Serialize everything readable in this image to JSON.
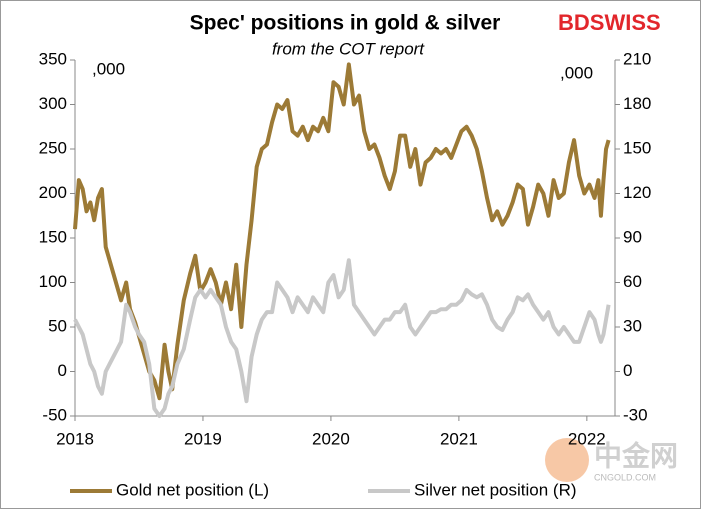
{
  "chart_data": {
    "type": "line",
    "title": "Spec' positions in gold & silver",
    "subtitle": "from the COT report",
    "left_unit": ",000",
    "right_unit": ",000",
    "logo": "BDSWISS",
    "watermark": "中金网",
    "watermark_sub": "CNGOLD.COM",
    "x": [
      2018.0,
      2018.03,
      2018.06,
      2018.09,
      2018.12,
      2018.15,
      2018.18,
      2018.21,
      2018.24,
      2018.27,
      2018.3,
      2018.33,
      2018.36,
      2018.4,
      2018.43,
      2018.47,
      2018.5,
      2018.54,
      2018.58,
      2018.62,
      2018.66,
      2018.7,
      2018.73,
      2018.76,
      2018.8,
      2018.85,
      2018.9,
      2018.94,
      2018.98,
      2019.02,
      2019.06,
      2019.1,
      2019.14,
      2019.18,
      2019.22,
      2019.26,
      2019.3,
      2019.34,
      2019.38,
      2019.42,
      2019.46,
      2019.5,
      2019.54,
      2019.58,
      2019.62,
      2019.66,
      2019.7,
      2019.74,
      2019.78,
      2019.82,
      2019.86,
      2019.9,
      2019.94,
      2019.98,
      2020.02,
      2020.06,
      2020.1,
      2020.14,
      2020.18,
      2020.22,
      2020.26,
      2020.3,
      2020.34,
      2020.38,
      2020.42,
      2020.46,
      2020.5,
      2020.54,
      2020.58,
      2020.62,
      2020.66,
      2020.7,
      2020.74,
      2020.78,
      2020.82,
      2020.86,
      2020.9,
      2020.94,
      2020.98,
      2021.02,
      2021.06,
      2021.1,
      2021.14,
      2021.18,
      2021.22,
      2021.26,
      2021.3,
      2021.34,
      2021.38,
      2021.42,
      2021.46,
      2021.5,
      2021.54,
      2021.58,
      2021.62,
      2021.66,
      2021.7,
      2021.74,
      2021.78,
      2021.82,
      2021.86,
      2021.9,
      2021.94,
      2021.98,
      2022.02,
      2022.06,
      2022.09,
      2022.11,
      2022.13,
      2022.15,
      2022.17
    ],
    "series": [
      {
        "name": "Gold net position (L)",
        "color": "#9c7a36",
        "axis": "y",
        "values": [
          160,
          215,
          205,
          180,
          190,
          170,
          195,
          205,
          140,
          125,
          110,
          95,
          80,
          100,
          70,
          55,
          40,
          20,
          0,
          -10,
          -30,
          30,
          0,
          -20,
          30,
          80,
          110,
          130,
          90,
          100,
          115,
          100,
          75,
          100,
          70,
          120,
          50,
          120,
          170,
          230,
          250,
          255,
          280,
          300,
          295,
          305,
          270,
          265,
          275,
          260,
          275,
          270,
          285,
          270,
          325,
          320,
          300,
          345,
          300,
          310,
          270,
          250,
          255,
          240,
          220,
          205,
          225,
          265,
          265,
          230,
          250,
          210,
          235,
          240,
          250,
          245,
          250,
          240,
          255,
          270,
          275,
          265,
          250,
          225,
          195,
          170,
          180,
          165,
          175,
          190,
          210,
          205,
          165,
          185,
          210,
          200,
          175,
          215,
          195,
          200,
          235,
          260,
          220,
          200,
          210,
          195,
          215,
          175,
          215,
          250,
          260
        ]
      },
      {
        "name": "Silver net position (R)",
        "color": "#c8c8c8",
        "axis": "y2",
        "values": [
          35,
          30,
          25,
          15,
          5,
          0,
          -10,
          -15,
          0,
          5,
          10,
          15,
          20,
          45,
          40,
          30,
          25,
          20,
          5,
          -25,
          -30,
          -25,
          -15,
          -10,
          5,
          15,
          35,
          50,
          55,
          50,
          55,
          50,
          45,
          30,
          20,
          15,
          0,
          -20,
          10,
          25,
          35,
          40,
          40,
          60,
          55,
          50,
          40,
          50,
          45,
          40,
          50,
          45,
          40,
          60,
          65,
          50,
          55,
          75,
          45,
          40,
          35,
          30,
          25,
          30,
          35,
          35,
          40,
          40,
          45,
          30,
          25,
          30,
          35,
          40,
          40,
          42,
          42,
          45,
          45,
          48,
          55,
          52,
          50,
          52,
          45,
          35,
          30,
          28,
          35,
          40,
          50,
          48,
          52,
          45,
          40,
          35,
          40,
          30,
          25,
          30,
          25,
          20,
          20,
          30,
          40,
          35,
          25,
          20,
          25,
          35,
          45
        ]
      }
    ],
    "xlim": [
      2018,
      2022.22
    ],
    "xticks": [
      2018,
      2019,
      2020,
      2021,
      2022
    ],
    "ylim": [
      -50,
      350
    ],
    "yticks": [
      -50,
      0,
      50,
      100,
      150,
      200,
      250,
      300,
      350
    ],
    "y2lim": [
      -30,
      210
    ],
    "y2ticks": [
      -30,
      0,
      30,
      60,
      90,
      120,
      150,
      180,
      210
    ]
  }
}
